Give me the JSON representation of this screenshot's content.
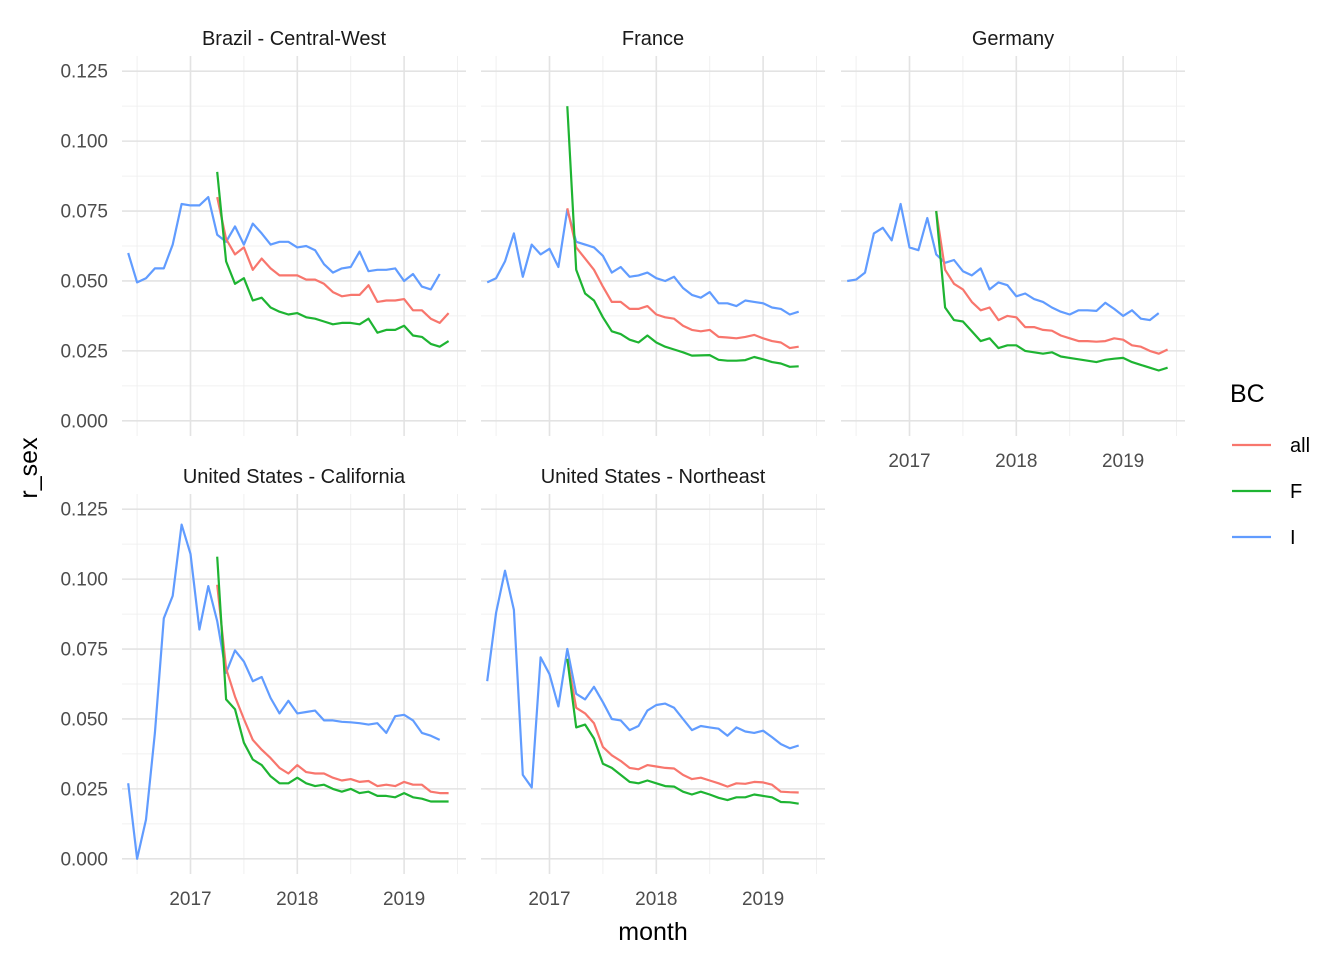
{
  "chart_data": {
    "type": "line",
    "xlabel": "month",
    "ylabel": "r_sex",
    "ylim": [
      0,
      0.125
    ],
    "y_ticks": [
      "0.000",
      "0.025",
      "0.050",
      "0.075",
      "0.100",
      "0.125"
    ],
    "x_ticks": [
      "2017",
      "2018",
      "2019"
    ],
    "grid": true,
    "legend": {
      "title": "BC",
      "position": "right",
      "entries": [
        "all",
        "F",
        "I"
      ]
    },
    "colors": {
      "all": "#F8766D",
      "F": "#1EB432",
      "I": "#619CFF"
    },
    "panels": [
      {
        "title": "Brazil - Central-West",
        "series": [
          {
            "name": "I",
            "start": "2016-06",
            "values": [
              0.06,
              0.0495,
              0.051,
              0.0545,
              0.0545,
              0.063,
              0.0775,
              0.077,
              0.077,
              0.08,
              0.0665,
              0.064,
              0.0695,
              0.063,
              0.0705,
              0.067,
              0.063,
              0.064,
              0.064,
              0.062,
              0.0625,
              0.061,
              0.056,
              0.053,
              0.0545,
              0.055,
              0.0605,
              0.0535,
              0.054,
              0.054,
              0.0545,
              0.05,
              0.0525,
              0.048,
              0.047,
              0.0525
            ]
          },
          {
            "name": "all",
            "start": "2017-04",
            "values": [
              0.08,
              0.065,
              0.0595,
              0.062,
              0.054,
              0.058,
              0.0545,
              0.052,
              0.052,
              0.052,
              0.0505,
              0.0505,
              0.049,
              0.046,
              0.0445,
              0.045,
              0.045,
              0.0485,
              0.0425,
              0.043,
              0.043,
              0.0435,
              0.0395,
              0.0395,
              0.0365,
              0.035,
              0.0385
            ]
          },
          {
            "name": "F",
            "start": "2017-04",
            "values": [
              0.089,
              0.057,
              0.049,
              0.051,
              0.043,
              0.044,
              0.0405,
              0.039,
              0.038,
              0.0385,
              0.037,
              0.0365,
              0.0355,
              0.0345,
              0.035,
              0.035,
              0.0345,
              0.0365,
              0.0315,
              0.0325,
              0.0325,
              0.034,
              0.0305,
              0.03,
              0.0275,
              0.0265,
              0.0285
            ]
          }
        ]
      },
      {
        "title": "France",
        "series": [
          {
            "name": "I",
            "start": "2016-06",
            "values": [
              0.0495,
              0.051,
              0.057,
              0.067,
              0.0515,
              0.063,
              0.0595,
              0.0615,
              0.055,
              0.0755,
              0.064,
              0.063,
              0.062,
              0.059,
              0.053,
              0.055,
              0.0515,
              0.052,
              0.053,
              0.051,
              0.05,
              0.0515,
              0.0475,
              0.045,
              0.044,
              0.046,
              0.042,
              0.042,
              0.041,
              0.043,
              0.0425,
              0.042,
              0.0405,
              0.04,
              0.038,
              0.039
            ]
          },
          {
            "name": "all",
            "start": "2017-03",
            "values": [
              0.076,
              0.062,
              0.058,
              0.054,
              0.048,
              0.0425,
              0.0425,
              0.04,
              0.04,
              0.041,
              0.038,
              0.037,
              0.0365,
              0.034,
              0.0325,
              0.032,
              0.0325,
              0.03,
              0.0298,
              0.0295,
              0.03,
              0.0307,
              0.0295,
              0.0285,
              0.028,
              0.026,
              0.0265
            ]
          },
          {
            "name": "F",
            "start": "2017-03",
            "values": [
              0.1125,
              0.054,
              0.0455,
              0.043,
              0.037,
              0.032,
              0.031,
              0.029,
              0.028,
              0.0305,
              0.028,
              0.0265,
              0.0255,
              0.0245,
              0.0233,
              0.0234,
              0.0235,
              0.0218,
              0.0215,
              0.0215,
              0.0217,
              0.0228,
              0.022,
              0.021,
              0.0205,
              0.0193,
              0.0195
            ]
          }
        ]
      },
      {
        "title": "Germany",
        "series": [
          {
            "name": "I",
            "start": "2016-06",
            "values": [
              0.05,
              0.0505,
              0.053,
              0.067,
              0.069,
              0.0645,
              0.0775,
              0.062,
              0.061,
              0.0725,
              0.0595,
              0.0565,
              0.0575,
              0.0535,
              0.052,
              0.0545,
              0.047,
              0.0495,
              0.0485,
              0.0445,
              0.0455,
              0.0435,
              0.0425,
              0.0405,
              0.039,
              0.038,
              0.0395,
              0.0395,
              0.0393,
              0.0422,
              0.04,
              0.0375,
              0.0395,
              0.0365,
              0.036,
              0.0385
            ]
          },
          {
            "name": "all",
            "start": "2017-04",
            "values": [
              0.075,
              0.054,
              0.049,
              0.047,
              0.0425,
              0.0395,
              0.0405,
              0.036,
              0.0375,
              0.037,
              0.0335,
              0.0335,
              0.0325,
              0.0322,
              0.0305,
              0.0295,
              0.0285,
              0.0285,
              0.0283,
              0.0285,
              0.0295,
              0.029,
              0.027,
              0.0265,
              0.025,
              0.024,
              0.0255
            ]
          },
          {
            "name": "F",
            "start": "2017-04",
            "values": [
              0.075,
              0.0405,
              0.036,
              0.0355,
              0.032,
              0.0285,
              0.0295,
              0.026,
              0.027,
              0.027,
              0.025,
              0.0245,
              0.024,
              0.0245,
              0.023,
              0.0225,
              0.022,
              0.0215,
              0.021,
              0.0218,
              0.0222,
              0.0225,
              0.021,
              0.02,
              0.019,
              0.018,
              0.019
            ]
          }
        ]
      },
      {
        "title": "United States - California",
        "series": [
          {
            "name": "I",
            "start": "2016-06",
            "values": [
              0.027,
              0.0,
              0.014,
              0.045,
              0.086,
              0.094,
              0.1195,
              0.109,
              0.082,
              0.0975,
              0.085,
              0.0665,
              0.0745,
              0.0705,
              0.0635,
              0.065,
              0.0575,
              0.052,
              0.0565,
              0.052,
              0.0525,
              0.053,
              0.0495,
              0.0495,
              0.049,
              0.0488,
              0.0485,
              0.048,
              0.0485,
              0.045,
              0.051,
              0.0515,
              0.0495,
              0.045,
              0.044,
              0.0425
            ]
          },
          {
            "name": "all",
            "start": "2017-04",
            "values": [
              0.098,
              0.068,
              0.058,
              0.05,
              0.0425,
              0.039,
              0.036,
              0.0325,
              0.0305,
              0.0335,
              0.031,
              0.0305,
              0.0305,
              0.029,
              0.028,
              0.0285,
              0.0275,
              0.0278,
              0.026,
              0.0265,
              0.026,
              0.0275,
              0.0265,
              0.0265,
              0.024,
              0.0235,
              0.0235
            ]
          },
          {
            "name": "F",
            "start": "2017-04",
            "values": [
              0.108,
              0.057,
              0.0535,
              0.0415,
              0.0355,
              0.0335,
              0.0295,
              0.027,
              0.027,
              0.029,
              0.027,
              0.026,
              0.0265,
              0.025,
              0.024,
              0.025,
              0.0235,
              0.024,
              0.0225,
              0.0225,
              0.022,
              0.0235,
              0.022,
              0.0215,
              0.0205,
              0.0205,
              0.0205
            ]
          }
        ]
      },
      {
        "title": "United States - Northeast",
        "series": [
          {
            "name": "I",
            "start": "2016-06",
            "values": [
              0.0635,
              0.088,
              0.103,
              0.089,
              0.03,
              0.0255,
              0.072,
              0.066,
              0.0545,
              0.075,
              0.059,
              0.057,
              0.0615,
              0.056,
              0.05,
              0.0495,
              0.046,
              0.0475,
              0.053,
              0.055,
              0.0555,
              0.054,
              0.05,
              0.046,
              0.0475,
              0.047,
              0.0465,
              0.044,
              0.047,
              0.0455,
              0.045,
              0.0458,
              0.0435,
              0.041,
              0.0395,
              0.0405
            ]
          },
          {
            "name": "all",
            "start": "2017-03",
            "values": [
              0.0715,
              0.054,
              0.052,
              0.0485,
              0.04,
              0.037,
              0.035,
              0.0325,
              0.032,
              0.0335,
              0.033,
              0.0325,
              0.0323,
              0.03,
              0.0285,
              0.029,
              0.028,
              0.027,
              0.0258,
              0.027,
              0.0268,
              0.0275,
              0.0273,
              0.0265,
              0.024,
              0.0238,
              0.0237
            ]
          },
          {
            "name": "F",
            "start": "2017-03",
            "values": [
              0.0715,
              0.047,
              0.048,
              0.043,
              0.034,
              0.0325,
              0.03,
              0.0275,
              0.027,
              0.028,
              0.027,
              0.026,
              0.0258,
              0.024,
              0.023,
              0.024,
              0.023,
              0.0218,
              0.021,
              0.022,
              0.022,
              0.023,
              0.0225,
              0.022,
              0.0203,
              0.0202,
              0.0197
            ]
          }
        ]
      }
    ]
  }
}
